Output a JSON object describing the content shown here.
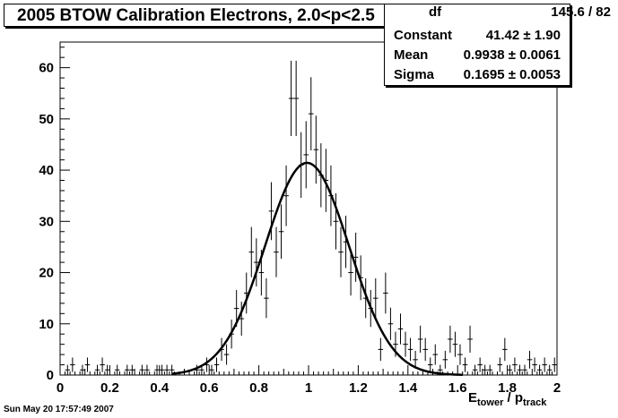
{
  "title": "2005 BTOW Calibration Electrons, 2.0<p<2.5",
  "stats": {
    "df_label": "df",
    "df_value": "145.6 / 82",
    "rows": [
      {
        "label": "Constant",
        "value": "41.42 ± 1.90"
      },
      {
        "label": "Mean",
        "value": "0.9938 ± 0.0061"
      },
      {
        "label": "Sigma",
        "value": "0.1695 ± 0.0053"
      }
    ]
  },
  "footer": "Sun May 20 17:57:49 2007",
  "xlabel_main": "E",
  "xlabel_sub1": "tower",
  "xlabel_mid": " / p",
  "xlabel_sub2": "track",
  "chart_data": {
    "type": "scatter",
    "xlim": [
      0,
      2
    ],
    "ylim": [
      0,
      65
    ],
    "x_ticks": [
      "0",
      "0.2",
      "0.4",
      "0.6",
      "0.8",
      "1",
      "1.2",
      "1.4",
      "1.6",
      "1.8",
      "2"
    ],
    "y_ticks": [
      "0",
      "10",
      "20",
      "30",
      "40",
      "50",
      "60"
    ],
    "bin_width": 0.02,
    "points": [
      [
        0.03,
        1
      ],
      [
        0.05,
        2
      ],
      [
        0.09,
        1
      ],
      [
        0.11,
        2
      ],
      [
        0.15,
        1
      ],
      [
        0.17,
        2
      ],
      [
        0.19,
        1
      ],
      [
        0.23,
        1
      ],
      [
        0.27,
        1
      ],
      [
        0.29,
        1
      ],
      [
        0.33,
        1
      ],
      [
        0.35,
        1
      ],
      [
        0.39,
        1
      ],
      [
        0.41,
        1
      ],
      [
        0.43,
        1
      ],
      [
        0.45,
        1
      ],
      [
        0.51,
        0
      ],
      [
        0.55,
        1
      ],
      [
        0.57,
        1
      ],
      [
        0.59,
        2
      ],
      [
        0.61,
        1
      ],
      [
        0.63,
        2
      ],
      [
        0.65,
        5
      ],
      [
        0.67,
        4
      ],
      [
        0.69,
        8
      ],
      [
        0.71,
        13
      ],
      [
        0.73,
        11
      ],
      [
        0.75,
        16
      ],
      [
        0.77,
        24
      ],
      [
        0.79,
        22
      ],
      [
        0.81,
        20
      ],
      [
        0.83,
        15
      ],
      [
        0.85,
        32
      ],
      [
        0.87,
        24
      ],
      [
        0.89,
        28
      ],
      [
        0.91,
        35
      ],
      [
        0.93,
        54
      ],
      [
        0.95,
        54
      ],
      [
        0.97,
        41
      ],
      [
        0.99,
        43
      ],
      [
        1.01,
        51
      ],
      [
        1.03,
        44
      ],
      [
        1.05,
        39
      ],
      [
        1.07,
        38
      ],
      [
        1.09,
        35
      ],
      [
        1.11,
        30
      ],
      [
        1.13,
        24
      ],
      [
        1.15,
        26
      ],
      [
        1.17,
        20
      ],
      [
        1.19,
        23
      ],
      [
        1.21,
        19
      ],
      [
        1.23,
        15
      ],
      [
        1.25,
        13
      ],
      [
        1.27,
        15
      ],
      [
        1.29,
        5
      ],
      [
        1.31,
        16
      ],
      [
        1.33,
        10
      ],
      [
        1.35,
        6
      ],
      [
        1.37,
        9
      ],
      [
        1.39,
        6
      ],
      [
        1.41,
        5
      ],
      [
        1.43,
        3
      ],
      [
        1.45,
        7
      ],
      [
        1.47,
        5
      ],
      [
        1.49,
        2
      ],
      [
        1.51,
        4
      ],
      [
        1.53,
        1
      ],
      [
        1.55,
        3
      ],
      [
        1.57,
        7
      ],
      [
        1.59,
        6
      ],
      [
        1.61,
        4
      ],
      [
        1.63,
        2
      ],
      [
        1.65,
        7
      ],
      [
        1.67,
        1
      ],
      [
        1.69,
        2
      ],
      [
        1.71,
        1
      ],
      [
        1.73,
        1
      ],
      [
        1.77,
        2
      ],
      [
        1.79,
        5
      ],
      [
        1.81,
        1
      ],
      [
        1.83,
        2
      ],
      [
        1.85,
        1
      ],
      [
        1.87,
        1
      ],
      [
        1.89,
        3
      ],
      [
        1.91,
        2
      ],
      [
        1.93,
        1
      ],
      [
        1.95,
        2
      ],
      [
        1.97,
        1
      ],
      [
        1.99,
        2
      ]
    ],
    "fit": {
      "type": "gaussian",
      "constant": 41.42,
      "mean": 0.9938,
      "sigma": 0.1695,
      "range": [
        0.45,
        1.62
      ]
    }
  }
}
